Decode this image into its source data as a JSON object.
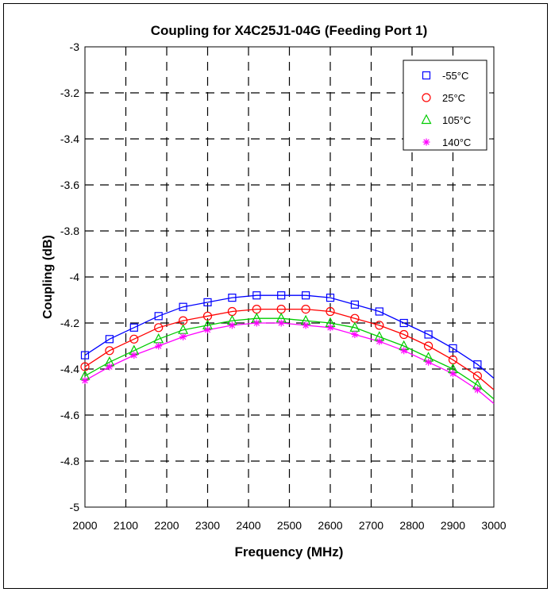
{
  "colors": {
    "series": [
      "#0000ff",
      "#ff0000",
      "#00cc00",
      "#ff00ff"
    ]
  },
  "chart_data": {
    "type": "line",
    "title": "Coupling for X4C25J1-04G (Feeding Port 1)",
    "xlabel": "Frequency (MHz)",
    "ylabel": "Coupling (dB)",
    "xlim": [
      2000,
      3000
    ],
    "ylim": [
      -5,
      -3
    ],
    "xticks": [
      2000,
      2100,
      2200,
      2300,
      2400,
      2500,
      2600,
      2700,
      2800,
      2900,
      3000
    ],
    "yticks": [
      -3,
      -3.2,
      -3.4,
      -3.6,
      -3.8,
      -4,
      -4.2,
      -4.4,
      -4.6,
      -4.8,
      -5
    ],
    "grid": true,
    "legend_position": "top-right",
    "x": [
      2000,
      2060,
      2120,
      2180,
      2240,
      2300,
      2360,
      2420,
      2480,
      2540,
      2600,
      2660,
      2720,
      2780,
      2840,
      2900,
      2960
    ],
    "series": [
      {
        "name": "-55°C",
        "marker": "square",
        "values": [
          -4.34,
          -4.27,
          -4.22,
          -4.17,
          -4.13,
          -4.11,
          -4.09,
          -4.08,
          -4.08,
          -4.08,
          -4.09,
          -4.12,
          -4.15,
          -4.2,
          -4.25,
          -4.31,
          -4.38
        ]
      },
      {
        "name": "25°C",
        "marker": "circle",
        "values": [
          -4.39,
          -4.32,
          -4.27,
          -4.22,
          -4.19,
          -4.17,
          -4.15,
          -4.14,
          -4.14,
          -4.14,
          -4.15,
          -4.18,
          -4.21,
          -4.25,
          -4.3,
          -4.36,
          -4.43
        ]
      },
      {
        "name": "105°C",
        "marker": "triangle",
        "values": [
          -4.43,
          -4.37,
          -4.32,
          -4.27,
          -4.23,
          -4.21,
          -4.19,
          -4.18,
          -4.18,
          -4.19,
          -4.2,
          -4.22,
          -4.26,
          -4.3,
          -4.35,
          -4.4,
          -4.47
        ]
      },
      {
        "name": "140°C",
        "marker": "asterisk",
        "values": [
          -4.45,
          -4.39,
          -4.34,
          -4.3,
          -4.26,
          -4.23,
          -4.21,
          -4.2,
          -4.2,
          -4.21,
          -4.22,
          -4.25,
          -4.28,
          -4.32,
          -4.37,
          -4.42,
          -4.49
        ]
      }
    ],
    "fit_curves": [
      {
        "values_at_xlim": [
          -4.35,
          -4.44
        ]
      },
      {
        "values_at_xlim": [
          -4.4,
          -4.49
        ]
      },
      {
        "values_at_xlim": [
          -4.44,
          -4.53
        ]
      },
      {
        "values_at_xlim": [
          -4.46,
          -4.55
        ]
      }
    ]
  }
}
